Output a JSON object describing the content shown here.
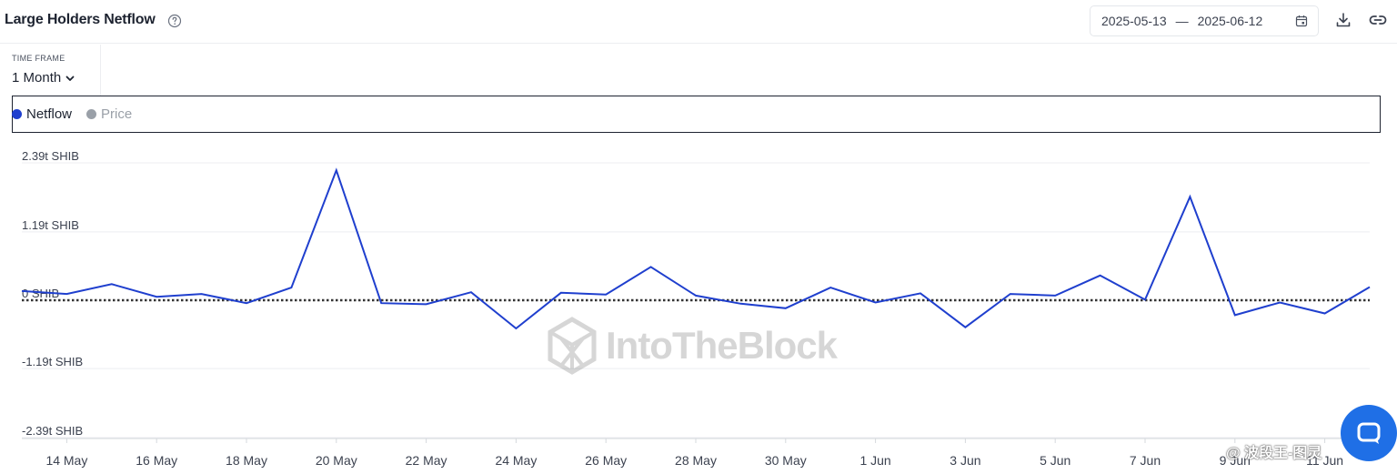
{
  "header": {
    "title": "Large Holders Netflow",
    "date_start": "2025-05-13",
    "date_separator": "—",
    "date_end": "2025-06-12"
  },
  "timeframe": {
    "label": "TIME FRAME",
    "value": "1 Month"
  },
  "legend": {
    "netflow": "Netflow",
    "price": "Price"
  },
  "colors": {
    "netflow": "#1f3fce",
    "price": "#9aa0a8",
    "zero_line": "#333333",
    "grid": "#eceef1",
    "chat_button": "#1f6fe6"
  },
  "watermark": "IntoTheBlock",
  "overlay_tag": "@ 波段王-图灵",
  "chart_data": {
    "type": "line",
    "series": [
      {
        "name": "Netflow",
        "unit": "t SHIB",
        "x": [
          "13 May",
          "14 May",
          "15 May",
          "16 May",
          "17 May",
          "18 May",
          "19 May",
          "20 May",
          "21 May",
          "22 May",
          "23 May",
          "24 May",
          "25 May",
          "26 May",
          "27 May",
          "28 May",
          "29 May",
          "30 May",
          "31 May",
          "1 Jun",
          "2 Jun",
          "3 Jun",
          "4 Jun",
          "5 Jun",
          "6 Jun",
          "7 Jun",
          "8 Jun",
          "9 Jun",
          "10 Jun",
          "11 Jun",
          "12 Jun"
        ],
        "values": [
          0.16,
          0.11,
          0.28,
          0.06,
          0.11,
          -0.05,
          0.22,
          2.26,
          -0.05,
          -0.07,
          0.14,
          -0.49,
          0.13,
          0.1,
          0.58,
          0.08,
          -0.06,
          -0.14,
          0.22,
          -0.04,
          0.12,
          -0.47,
          0.11,
          0.08,
          0.43,
          0.01,
          1.8,
          -0.26,
          -0.04,
          -0.23,
          0.23
        ]
      }
    ],
    "y_ticks": [
      "2.39t SHIB",
      "1.19t SHIB",
      "0 SHIB",
      "-1.19t SHIB",
      "-2.39t SHIB"
    ],
    "y_tick_values": [
      2.39,
      1.19,
      0,
      -1.19,
      -2.39
    ],
    "ylim": [
      -2.39,
      2.39
    ],
    "x_ticks": [
      "14 May",
      "16 May",
      "18 May",
      "20 May",
      "22 May",
      "24 May",
      "26 May",
      "28 May",
      "30 May",
      "1 Jun",
      "3 Jun",
      "5 Jun",
      "7 Jun",
      "9 Jun",
      "11 Jun"
    ],
    "grid": true,
    "zero_line": "dotted",
    "legend": "top-left"
  }
}
